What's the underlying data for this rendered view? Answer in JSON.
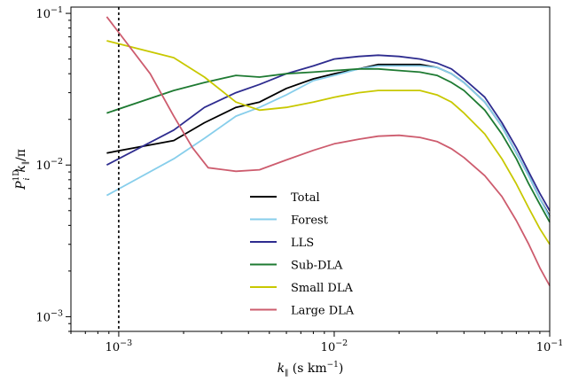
{
  "chart_data": {
    "type": "line",
    "title": "",
    "xlabel": "k_∥ (s km⁻¹)",
    "ylabel": "P_i^1D k_∥ / π",
    "x_scale": "log",
    "y_scale": "log",
    "xlim": [
      0.0006,
      0.1
    ],
    "ylim": [
      0.0008,
      0.11
    ],
    "x_ticks": [
      {
        "value": 0.001,
        "base": "10",
        "exp": "−3"
      },
      {
        "value": 0.01,
        "base": "10",
        "exp": "−2"
      },
      {
        "value": 0.1,
        "base": "10",
        "exp": "−1"
      }
    ],
    "y_ticks": [
      {
        "value": 0.001,
        "base": "10",
        "exp": "−3"
      },
      {
        "value": 0.01,
        "base": "10",
        "exp": "−2"
      },
      {
        "value": 0.1,
        "base": "10",
        "exp": "−1"
      }
    ],
    "vline_x": 0.001,
    "grid": false,
    "legend_position": "lower-center",
    "series": [
      {
        "name": "Total",
        "color": "#000000",
        "x": [
          0.00088,
          0.0018,
          0.0025,
          0.0035,
          0.0045,
          0.006,
          0.008,
          0.01,
          0.013,
          0.016,
          0.02,
          0.025,
          0.03,
          0.035,
          0.04,
          0.05,
          0.06,
          0.07,
          0.08,
          0.09,
          0.1
        ],
        "y": [
          0.012,
          0.0145,
          0.019,
          0.024,
          0.026,
          0.032,
          0.037,
          0.04,
          0.043,
          0.046,
          0.046,
          0.046,
          0.044,
          0.04,
          0.035,
          0.026,
          0.018,
          0.012,
          0.0085,
          0.006,
          0.0046
        ]
      },
      {
        "name": "Forest",
        "color": "#87ceeb",
        "x": [
          0.00088,
          0.0018,
          0.0025,
          0.0035,
          0.0045,
          0.006,
          0.008,
          0.01,
          0.013,
          0.016,
          0.02,
          0.025,
          0.03,
          0.035,
          0.04,
          0.05,
          0.06,
          0.07,
          0.08,
          0.09,
          0.1
        ],
        "y": [
          0.0063,
          0.011,
          0.015,
          0.021,
          0.024,
          0.029,
          0.036,
          0.039,
          0.043,
          0.045,
          0.045,
          0.045,
          0.044,
          0.04,
          0.035,
          0.026,
          0.018,
          0.012,
          0.0085,
          0.006,
          0.0045
        ]
      },
      {
        "name": "LLS",
        "color": "#2e2c8f",
        "x": [
          0.00088,
          0.0018,
          0.0025,
          0.0035,
          0.0045,
          0.006,
          0.008,
          0.01,
          0.013,
          0.016,
          0.02,
          0.025,
          0.03,
          0.035,
          0.04,
          0.05,
          0.06,
          0.07,
          0.08,
          0.09,
          0.1
        ],
        "y": [
          0.01,
          0.017,
          0.024,
          0.03,
          0.034,
          0.04,
          0.045,
          0.05,
          0.052,
          0.053,
          0.052,
          0.05,
          0.047,
          0.043,
          0.037,
          0.028,
          0.019,
          0.013,
          0.009,
          0.0065,
          0.005
        ]
      },
      {
        "name": "Sub-DLA",
        "color": "#1e7a32",
        "x": [
          0.00088,
          0.0018,
          0.0025,
          0.0035,
          0.0045,
          0.006,
          0.008,
          0.01,
          0.013,
          0.016,
          0.02,
          0.025,
          0.03,
          0.035,
          0.04,
          0.05,
          0.06,
          0.07,
          0.08,
          0.09,
          0.1
        ],
        "y": [
          0.022,
          0.031,
          0.035,
          0.039,
          0.038,
          0.04,
          0.041,
          0.042,
          0.043,
          0.043,
          0.042,
          0.041,
          0.039,
          0.035,
          0.031,
          0.023,
          0.016,
          0.011,
          0.0075,
          0.0055,
          0.0042
        ]
      },
      {
        "name": "Small DLA",
        "color": "#c8c800",
        "x": [
          0.00088,
          0.0018,
          0.0025,
          0.0035,
          0.0045,
          0.006,
          0.008,
          0.01,
          0.013,
          0.016,
          0.02,
          0.025,
          0.03,
          0.035,
          0.04,
          0.05,
          0.06,
          0.07,
          0.08,
          0.09,
          0.1
        ],
        "y": [
          0.066,
          0.051,
          0.038,
          0.026,
          0.023,
          0.024,
          0.026,
          0.028,
          0.03,
          0.031,
          0.031,
          0.031,
          0.029,
          0.026,
          0.022,
          0.016,
          0.011,
          0.0075,
          0.0052,
          0.0038,
          0.003
        ]
      },
      {
        "name": "Large DLA",
        "color": "#cd5c6e",
        "x": [
          0.00088,
          0.0014,
          0.0018,
          0.0022,
          0.0026,
          0.0035,
          0.0045,
          0.006,
          0.008,
          0.01,
          0.013,
          0.016,
          0.02,
          0.025,
          0.03,
          0.035,
          0.04,
          0.05,
          0.06,
          0.07,
          0.08,
          0.09,
          0.1
        ],
        "y": [
          0.095,
          0.04,
          0.021,
          0.013,
          0.0096,
          0.0091,
          0.0093,
          0.0108,
          0.0125,
          0.0138,
          0.0148,
          0.0155,
          0.0157,
          0.0152,
          0.0143,
          0.0128,
          0.0112,
          0.0085,
          0.0062,
          0.0043,
          0.003,
          0.0021,
          0.0016
        ]
      }
    ]
  }
}
